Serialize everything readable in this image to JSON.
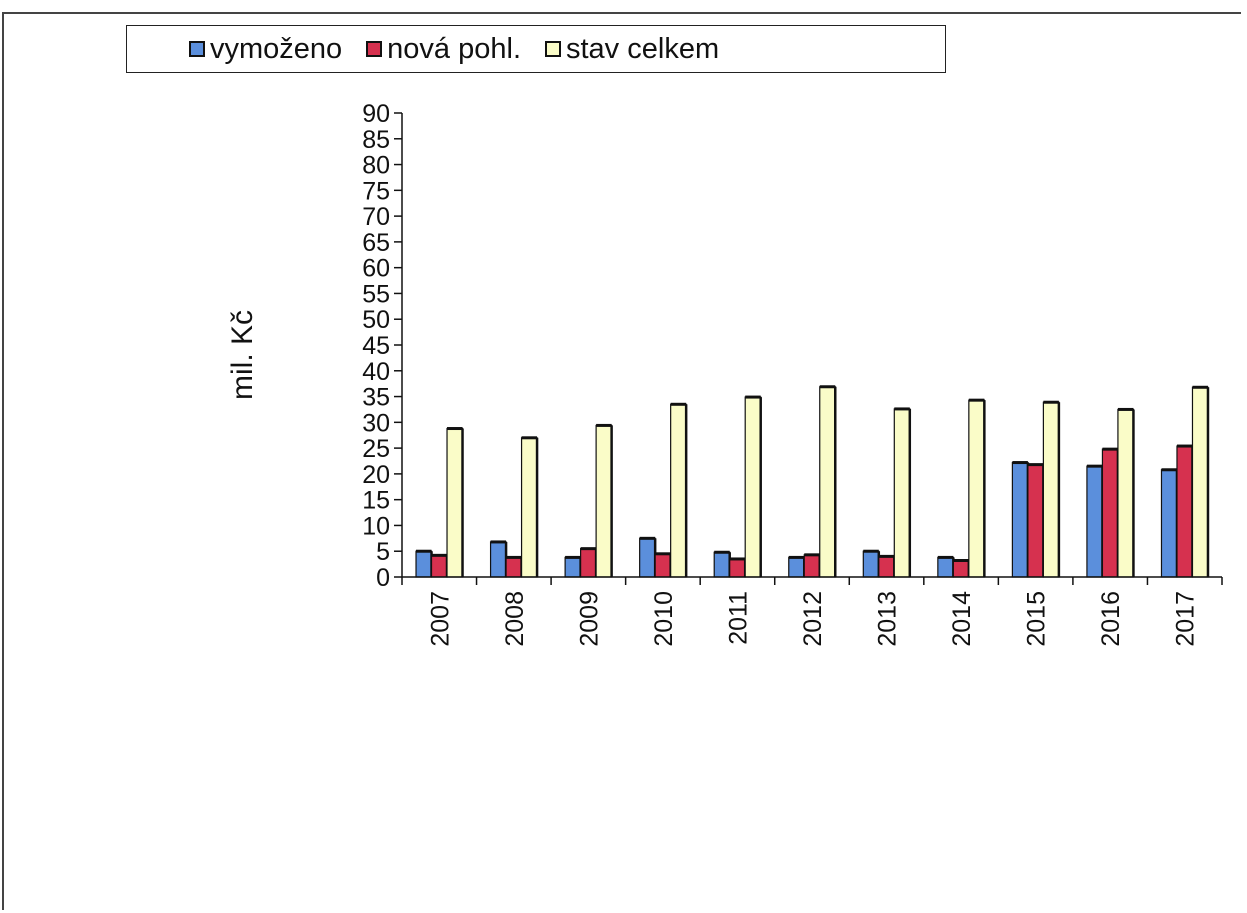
{
  "chart_data": {
    "type": "bar",
    "title": "",
    "xlabel": "",
    "ylabel": "mil. Kč",
    "ylim": [
      0,
      90
    ],
    "ytick_step": 5,
    "grid": false,
    "legend_position": "top",
    "categories": [
      "2007",
      "2008",
      "2009",
      "2010",
      "2011",
      "2012",
      "2013",
      "2014",
      "2015",
      "2016",
      "2017"
    ],
    "series": [
      {
        "name": "vymoženo",
        "color": "#5b8fdc",
        "values": [
          5,
          6.8,
          3.8,
          7.5,
          4.8,
          3.8,
          5,
          3.8,
          22.2,
          21.5,
          20.8
        ]
      },
      {
        "name": "nová pohl.",
        "color": "#d6314f",
        "values": [
          4.2,
          3.8,
          5.5,
          4.5,
          3.5,
          4.3,
          4,
          3.2,
          21.8,
          24.8,
          25.4
        ]
      },
      {
        "name": "stav celkem",
        "color": "#fafcc8",
        "values": [
          28.8,
          27,
          29.4,
          33.5,
          34.9,
          36.9,
          32.6,
          34.3,
          33.9,
          32.5,
          36.8
        ]
      }
    ]
  }
}
